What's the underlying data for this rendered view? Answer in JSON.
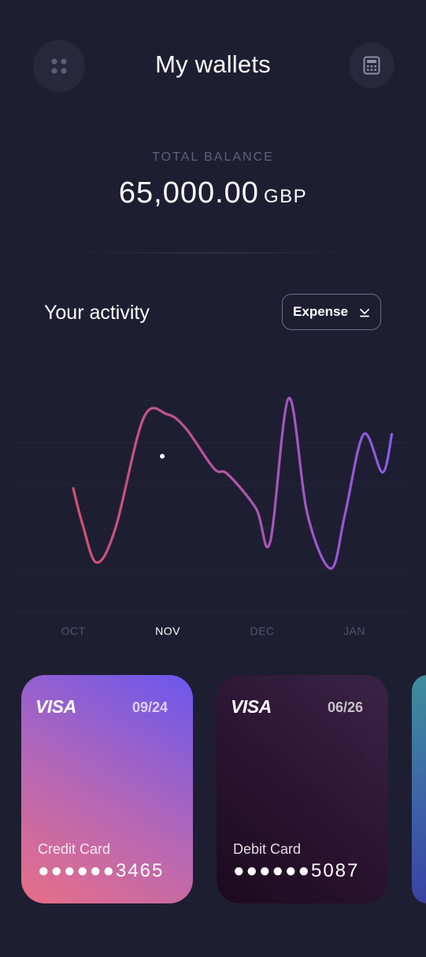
{
  "header": {
    "title": "My wallets",
    "menu_icon": "apps-grid-icon",
    "calculator_icon": "calculator-icon"
  },
  "balance": {
    "label": "TOTAL BALANCE",
    "amount": "65,000.00",
    "currency": "GBP"
  },
  "activity": {
    "title": "Your activity",
    "filter": "Expense",
    "filter_icon": "chevron-down-icon",
    "months": [
      {
        "label": "OCT",
        "active": false
      },
      {
        "label": "NOV",
        "active": true
      },
      {
        "label": "DEC",
        "active": false
      },
      {
        "label": "JAN",
        "active": false
      }
    ]
  },
  "chart_data": {
    "type": "line",
    "title": "Your activity",
    "xlabel": "",
    "ylabel": "",
    "categories": [
      "OCT",
      "NOV",
      "DEC",
      "JAN"
    ],
    "x": [
      0,
      0.1,
      0.25,
      0.45,
      0.75,
      1.0,
      1.2,
      1.5,
      1.65,
      1.95,
      2.1,
      2.3,
      2.5,
      2.75,
      2.9,
      3.1,
      3.3,
      3.4
    ],
    "series": [
      {
        "name": "Expense",
        "values": [
          55,
          37,
          18,
          35,
          90,
          92,
          85,
          65,
          62,
          45,
          28,
          100,
          42,
          15,
          42,
          82,
          63,
          82
        ]
      }
    ],
    "ylim": [
      0,
      110
    ],
    "selected_point": {
      "x": 0.95,
      "y": 71
    },
    "grid": true,
    "colors": {
      "start": "#d2516a",
      "end": "#8c5ae6",
      "highlight": "#e0425c"
    }
  },
  "cards": [
    {
      "brand": "VISA",
      "expiry": "09/24",
      "type": "Credit Card",
      "number": "●●●●●●3465"
    },
    {
      "brand": "VISA",
      "expiry": "06/26",
      "type": "Debit Card",
      "number": "●●●●●●5087"
    }
  ]
}
